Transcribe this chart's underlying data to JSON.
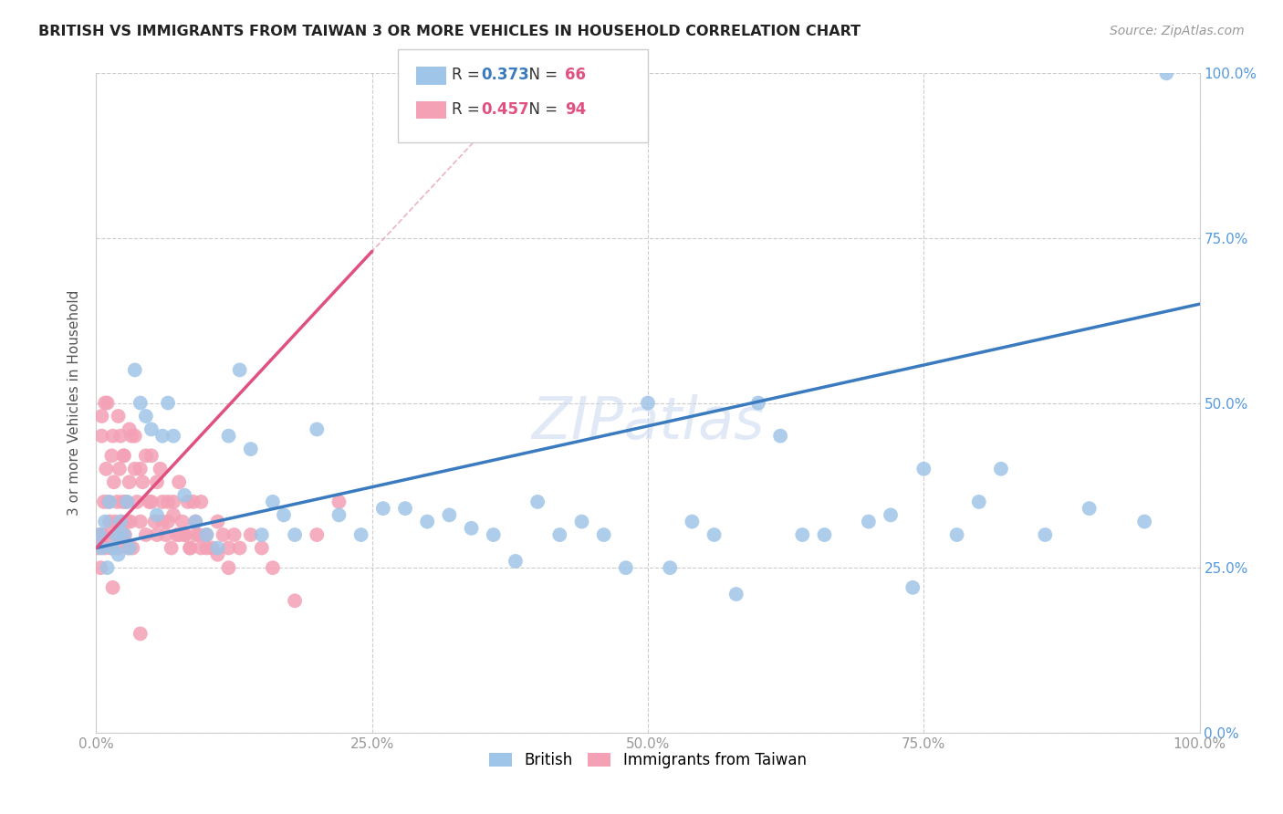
{
  "title": "BRITISH VS IMMIGRANTS FROM TAIWAN 3 OR MORE VEHICLES IN HOUSEHOLD CORRELATION CHART",
  "source": "Source: ZipAtlas.com",
  "ylabel": "3 or more Vehicles in Household",
  "xlim": [
    0,
    100
  ],
  "ylim": [
    0,
    100
  ],
  "xtick_labels": [
    "0.0%",
    "25.0%",
    "50.0%",
    "75.0%",
    "100.0%"
  ],
  "xtick_vals": [
    0,
    25,
    50,
    75,
    100
  ],
  "right_ytick_labels": [
    "0.0%",
    "25.0%",
    "50.0%",
    "75.0%",
    "100.0%"
  ],
  "ytick_vals": [
    0,
    25,
    50,
    75,
    100
  ],
  "british_R": 0.373,
  "british_N": 66,
  "taiwan_R": 0.457,
  "taiwan_N": 94,
  "british_color": "#9fc5e8",
  "taiwan_color": "#f4a0b5",
  "british_line_color": "#3a7abf",
  "taiwan_line_color": "#e05080",
  "background_color": "#ffffff",
  "legend_R_color_british": "#3a7abf",
  "legend_R_color_taiwan": "#e05080",
  "legend_N_color": "#e05080",
  "british_intercept": 28.0,
  "british_slope": 0.37,
  "taiwan_intercept": 28.0,
  "taiwan_slope": 1.8,
  "british_x": [
    0.3,
    0.5,
    0.8,
    1.0,
    1.2,
    1.5,
    1.8,
    2.0,
    2.2,
    2.5,
    2.8,
    3.0,
    3.5,
    4.0,
    4.5,
    5.0,
    5.5,
    6.0,
    6.5,
    7.0,
    8.0,
    9.0,
    10.0,
    11.0,
    12.0,
    13.0,
    14.0,
    15.0,
    16.0,
    17.0,
    18.0,
    20.0,
    22.0,
    24.0,
    26.0,
    28.0,
    30.0,
    32.0,
    34.0,
    36.0,
    38.0,
    40.0,
    42.0,
    44.0,
    46.0,
    48.0,
    50.0,
    52.0,
    54.0,
    56.0,
    58.0,
    60.0,
    62.0,
    64.0,
    66.0,
    70.0,
    74.0,
    78.0,
    82.0,
    86.0,
    90.0,
    95.0,
    80.0,
    75.0,
    72.0,
    97.0
  ],
  "british_y": [
    30,
    28,
    32,
    25,
    35,
    28,
    30,
    27,
    32,
    30,
    35,
    28,
    55,
    50,
    48,
    46,
    33,
    45,
    50,
    45,
    36,
    32,
    30,
    28,
    45,
    55,
    43,
    30,
    35,
    33,
    30,
    46,
    33,
    30,
    34,
    34,
    32,
    33,
    31,
    30,
    26,
    35,
    30,
    32,
    30,
    25,
    50,
    25,
    32,
    30,
    21,
    50,
    45,
    30,
    30,
    32,
    22,
    30,
    40,
    30,
    34,
    32,
    35,
    40,
    33,
    100
  ],
  "taiwan_x": [
    0.2,
    0.3,
    0.4,
    0.5,
    0.6,
    0.7,
    0.8,
    0.9,
    1.0,
    1.1,
    1.2,
    1.3,
    1.4,
    1.5,
    1.6,
    1.7,
    1.8,
    1.9,
    2.0,
    2.1,
    2.2,
    2.3,
    2.4,
    2.5,
    2.6,
    2.7,
    2.8,
    2.9,
    3.0,
    3.1,
    3.2,
    3.3,
    3.5,
    3.7,
    4.0,
    4.2,
    4.5,
    4.8,
    5.0,
    5.3,
    5.5,
    5.8,
    6.0,
    6.3,
    6.5,
    6.8,
    7.0,
    7.3,
    7.5,
    7.8,
    8.0,
    8.3,
    8.5,
    8.8,
    9.0,
    9.3,
    9.5,
    10.0,
    10.5,
    11.0,
    11.5,
    12.0,
    12.5,
    13.0,
    14.0,
    15.0,
    16.0,
    18.0,
    20.0,
    22.0,
    0.5,
    0.8,
    1.0,
    1.5,
    2.0,
    2.5,
    3.0,
    3.5,
    4.0,
    4.5,
    5.0,
    5.5,
    6.0,
    6.5,
    7.0,
    7.5,
    8.0,
    8.5,
    9.0,
    9.5,
    10.0,
    11.0,
    12.0,
    4.0
  ],
  "taiwan_y": [
    28,
    30,
    25,
    45,
    30,
    35,
    28,
    40,
    30,
    35,
    32,
    28,
    42,
    22,
    38,
    32,
    30,
    35,
    28,
    40,
    45,
    32,
    35,
    42,
    30,
    35,
    32,
    28,
    38,
    32,
    45,
    28,
    40,
    35,
    32,
    38,
    30,
    35,
    42,
    32,
    30,
    40,
    35,
    30,
    32,
    28,
    35,
    30,
    38,
    32,
    30,
    35,
    28,
    35,
    32,
    30,
    35,
    30,
    28,
    32,
    30,
    28,
    30,
    28,
    30,
    28,
    25,
    20,
    30,
    35,
    48,
    50,
    50,
    45,
    48,
    42,
    46,
    45,
    40,
    42,
    35,
    38,
    32,
    35,
    33,
    30,
    30,
    28,
    30,
    28,
    28,
    27,
    25,
    15
  ]
}
